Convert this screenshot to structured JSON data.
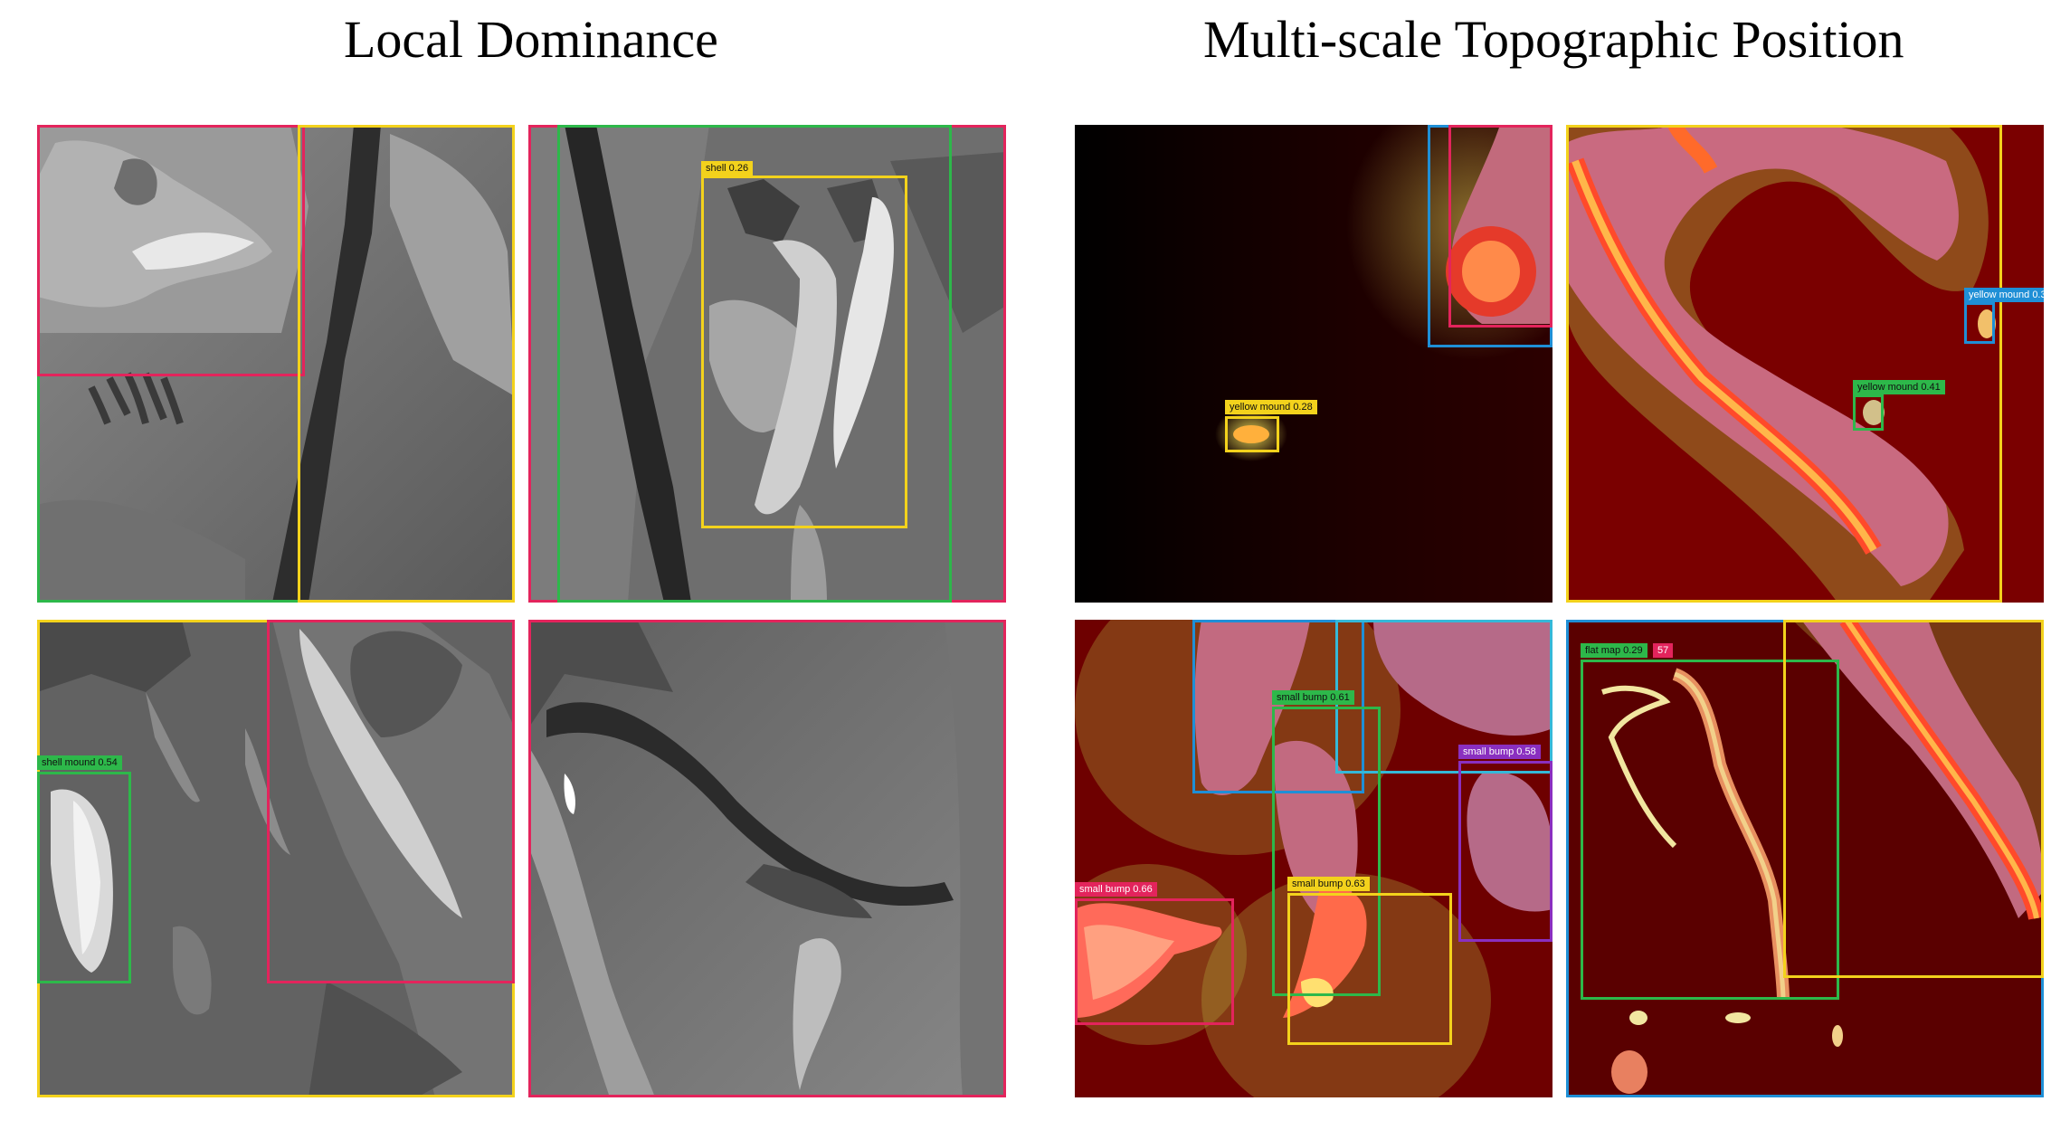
{
  "titles": {
    "left": "Local Dominance",
    "right": "Multi-scale Topographic Position"
  },
  "colors": {
    "green": "#2db84a",
    "yellow": "#f3d21c",
    "pink": "#e3245c",
    "blue": "#1f8fd6",
    "cyan": "#35b8d8",
    "purple": "#8a2fc0",
    "darkred": "#5a0000"
  },
  "labels": {
    "ld_tr_shell": "shell 0.26",
    "ld_bl_shell_mound": "shell mound 0.54",
    "tp_tl_yellow_mound": "yellow mound 0.28",
    "tp_tr_yellow_mound_a": "yellow mound 0.3",
    "tp_tr_yellow_mound_b": "yellow mound 0.41",
    "tp_bl_small_bump_a": "small bump 0.61",
    "tp_bl_small_bump_b": "small bump 0.58",
    "tp_bl_small_bump_c": "small bump 0.66",
    "tp_bl_small_bump_d": "small bump 0.63",
    "tp_br_flat_map": "flat map 0.29",
    "tp_br_extra": "57"
  }
}
